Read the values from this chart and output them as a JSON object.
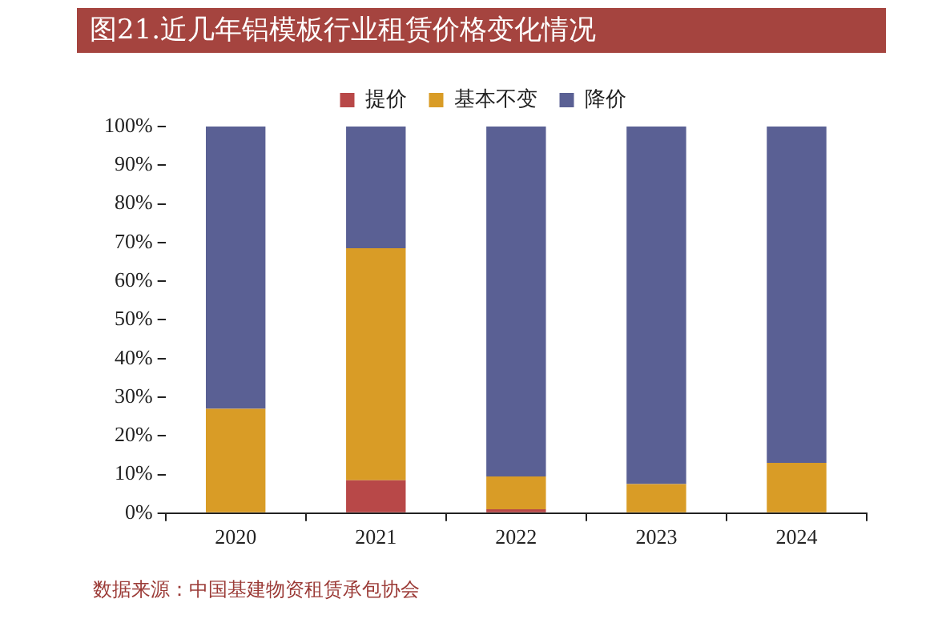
{
  "chart_data": {
    "type": "bar",
    "title": "图21.近几年铝模板行业租赁价格变化情况",
    "categories": [
      "2020",
      "2021",
      "2022",
      "2023",
      "2024"
    ],
    "series": [
      {
        "name": "提价",
        "color": "#b84848",
        "values": [
          0,
          8.5,
          1,
          0,
          0
        ]
      },
      {
        "name": "基本不变",
        "color": "#d99c26",
        "values": [
          27,
          60,
          8.5,
          7.5,
          13
        ]
      },
      {
        "name": "降价",
        "color": "#5a6094",
        "values": [
          73,
          31.5,
          90.5,
          92.5,
          87
        ]
      }
    ],
    "stacked": true,
    "ylim": [
      0,
      100
    ],
    "yticks": [
      {
        "value": 0,
        "label": "0%"
      },
      {
        "value": 10,
        "label": "10%"
      },
      {
        "value": 20,
        "label": "20%"
      },
      {
        "value": 30,
        "label": "30%"
      },
      {
        "value": 40,
        "label": "40%"
      },
      {
        "value": 50,
        "label": "50%"
      },
      {
        "value": 60,
        "label": "60%"
      },
      {
        "value": 70,
        "label": "70%"
      },
      {
        "value": 80,
        "label": "80%"
      },
      {
        "value": 90,
        "label": "90%"
      },
      {
        "value": 100,
        "label": "100%"
      }
    ],
    "grid": false,
    "legend": "top",
    "annotations": [
      "数据来源：中国基建物资租赁承包协会"
    ]
  }
}
